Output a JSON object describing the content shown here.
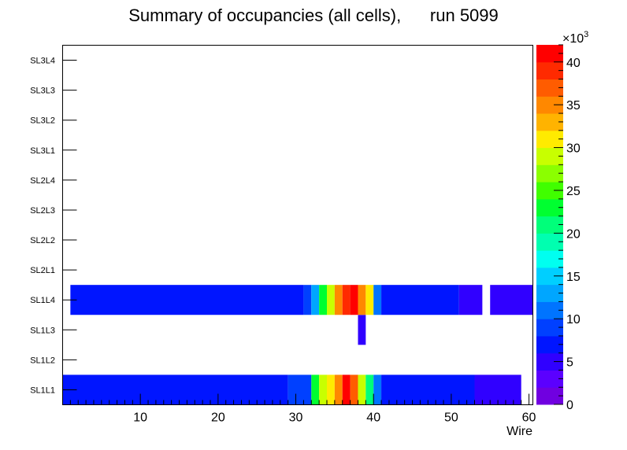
{
  "chart_data": {
    "type": "heatmap",
    "title": "Summary of occupancies (all cells),      run 5099",
    "xlabel": "Wire",
    "xlim": [
      0,
      60.5
    ],
    "x_ticks": [
      10,
      20,
      30,
      40,
      50,
      60
    ],
    "y_categories": [
      "SL1L1",
      "SL1L2",
      "SL1L3",
      "SL1L4",
      "SL2L1",
      "SL2L2",
      "SL2L3",
      "SL2L4",
      "SL3L1",
      "SL3L2",
      "SL3L3",
      "SL3L4"
    ],
    "z_min": 0,
    "z_max": 42000,
    "z_exponent_label": "×10",
    "z_exponent_power": "3",
    "z_ticks": [
      0,
      5,
      10,
      15,
      20,
      25,
      30,
      35,
      40
    ],
    "palette": [
      "#7000e0",
      "#5b00ff",
      "#3000ff",
      "#0015ff",
      "#0040ff",
      "#0074ff",
      "#00a6ff",
      "#00cfff",
      "#00fff0",
      "#00ffb0",
      "#00ff7a",
      "#00ff30",
      "#40ff00",
      "#8bff00",
      "#c8ff00",
      "#ffeb00",
      "#ffb300",
      "#ff8800",
      "#ff5c00",
      "#ff2a00",
      "#ff0000"
    ],
    "cells": [
      {
        "row": "SL1L1",
        "x0": 0,
        "x1": 29,
        "value": 7000
      },
      {
        "row": "SL1L1",
        "x0": 29,
        "x1": 32,
        "value": 9000
      },
      {
        "row": "SL1L1",
        "x0": 32,
        "x1": 33,
        "value": 22000
      },
      {
        "row": "SL1L1",
        "x0": 33,
        "x1": 34,
        "value": 28000
      },
      {
        "row": "SL1L1",
        "x0": 34,
        "x1": 35,
        "value": 31000
      },
      {
        "row": "SL1L1",
        "x0": 35,
        "x1": 36,
        "value": 34000
      },
      {
        "row": "SL1L1",
        "x0": 36,
        "x1": 37,
        "value": 40000
      },
      {
        "row": "SL1L1",
        "x0": 37,
        "x1": 38,
        "value": 37000
      },
      {
        "row": "SL1L1",
        "x0": 38,
        "x1": 39,
        "value": 29000
      },
      {
        "row": "SL1L1",
        "x0": 39,
        "x1": 40,
        "value": 20000
      },
      {
        "row": "SL1L1",
        "x0": 40,
        "x1": 41,
        "value": 10000
      },
      {
        "row": "SL1L1",
        "x0": 41,
        "x1": 53,
        "value": 7000
      },
      {
        "row": "SL1L1",
        "x0": 53,
        "x1": 59,
        "value": 5000
      },
      {
        "row": "SL1L3",
        "x0": 38,
        "x1": 39,
        "value": 4000
      },
      {
        "row": "SL1L4",
        "x0": 1,
        "x1": 31,
        "value": 7000
      },
      {
        "row": "SL1L4",
        "x0": 31,
        "x1": 32,
        "value": 9000
      },
      {
        "row": "SL1L4",
        "x0": 32,
        "x1": 33,
        "value": 12000
      },
      {
        "row": "SL1L4",
        "x0": 33,
        "x1": 34,
        "value": 22000
      },
      {
        "row": "SL1L4",
        "x0": 34,
        "x1": 35,
        "value": 28000
      },
      {
        "row": "SL1L4",
        "x0": 35,
        "x1": 36,
        "value": 34000
      },
      {
        "row": "SL1L4",
        "x0": 36,
        "x1": 37,
        "value": 38000
      },
      {
        "row": "SL1L4",
        "x0": 37,
        "x1": 38,
        "value": 41000
      },
      {
        "row": "SL1L4",
        "x0": 38,
        "x1": 39,
        "value": 34000
      },
      {
        "row": "SL1L4",
        "x0": 39,
        "x1": 40,
        "value": 30000
      },
      {
        "row": "SL1L4",
        "x0": 40,
        "x1": 41,
        "value": 10000
      },
      {
        "row": "SL1L4",
        "x0": 41,
        "x1": 51,
        "value": 7000
      },
      {
        "row": "SL1L4",
        "x0": 51,
        "x1": 54,
        "value": 5000
      },
      {
        "row": "SL1L4",
        "x0": 55,
        "x1": 60.5,
        "value": 5000
      }
    ]
  }
}
